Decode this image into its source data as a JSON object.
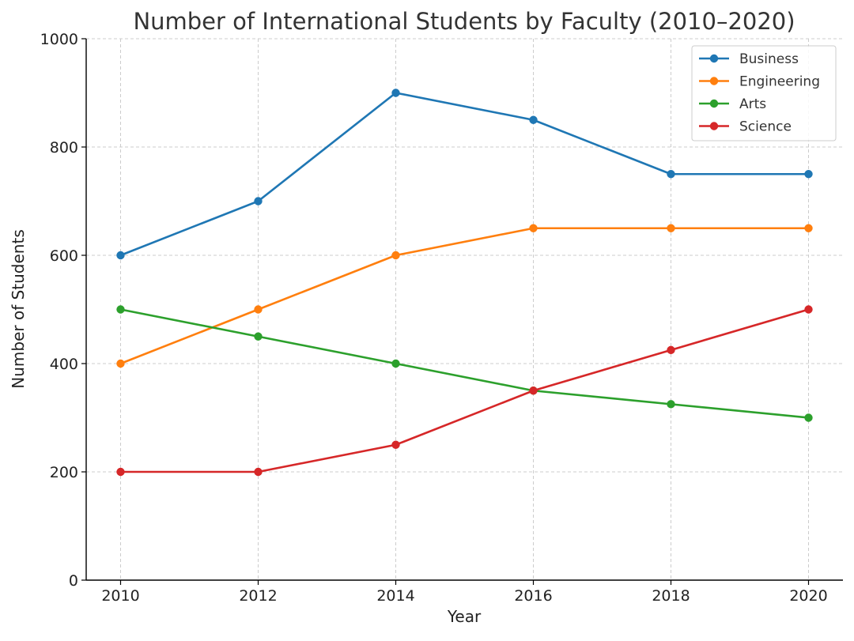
{
  "chart_data": {
    "type": "line",
    "title": "Number of International Students by Faculty (2010–2020)",
    "xlabel": "Year",
    "ylabel": "Number of Students",
    "x": [
      2010,
      2012,
      2014,
      2016,
      2018,
      2020
    ],
    "xlim": [
      2009.5,
      2020.5
    ],
    "ylim": [
      0,
      1000
    ],
    "yticks": [
      0,
      200,
      400,
      600,
      800,
      1000
    ],
    "grid": true,
    "legend_position": "top-right",
    "markers": "circle",
    "series": [
      {
        "name": "Business",
        "color": "#1f77b4",
        "values": [
          600,
          700,
          900,
          850,
          750,
          750
        ]
      },
      {
        "name": "Engineering",
        "color": "#ff7f0e",
        "values": [
          400,
          500,
          600,
          650,
          650,
          650
        ]
      },
      {
        "name": "Arts",
        "color": "#2ca02c",
        "values": [
          500,
          450,
          400,
          350,
          325,
          300
        ]
      },
      {
        "name": "Science",
        "color": "#d62728",
        "values": [
          200,
          200,
          250,
          350,
          425,
          500
        ]
      }
    ]
  }
}
